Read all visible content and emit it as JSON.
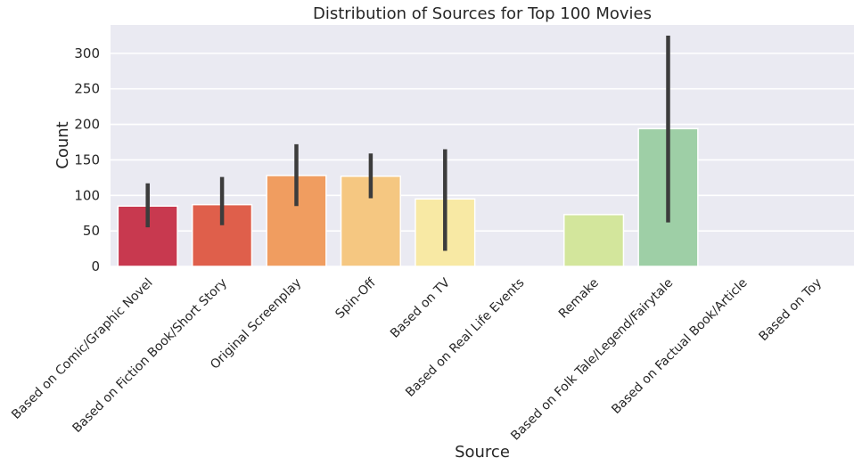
{
  "chart_data": {
    "type": "bar",
    "title": "Distribution of Sources for Top 100 Movies",
    "xlabel": "Source",
    "ylabel": "Count",
    "ylim": [
      0,
      340
    ],
    "yticks": [
      0,
      50,
      100,
      150,
      200,
      250,
      300
    ],
    "grid": true,
    "legend": "none",
    "categories": [
      "Based on Comic/Graphic Novel",
      "Based on Fiction Book/Short Story",
      "Original Screenplay",
      "Spin-Off",
      "Based on TV",
      "Based on Real Life Events",
      "Remake",
      "Based on Folk Tale/Legend/Fairytale",
      "Based on Factual Book/Article",
      "Based on Toy"
    ],
    "values": [
      85,
      87,
      128,
      127,
      95,
      null,
      73,
      194,
      null,
      null
    ],
    "error_low": [
      55,
      58,
      85,
      96,
      22,
      null,
      null,
      62,
      null,
      null
    ],
    "error_high": [
      117,
      126,
      172,
      159,
      165,
      null,
      null,
      325,
      null,
      null
    ],
    "colors": [
      "#c8394f",
      "#df5f4b",
      "#f09d60",
      "#f5c781",
      "#f8e9a4",
      "#f3f7af",
      "#d3e69c",
      "#9ecfa6",
      "#6ab3ad",
      "#4f83b8"
    ]
  }
}
